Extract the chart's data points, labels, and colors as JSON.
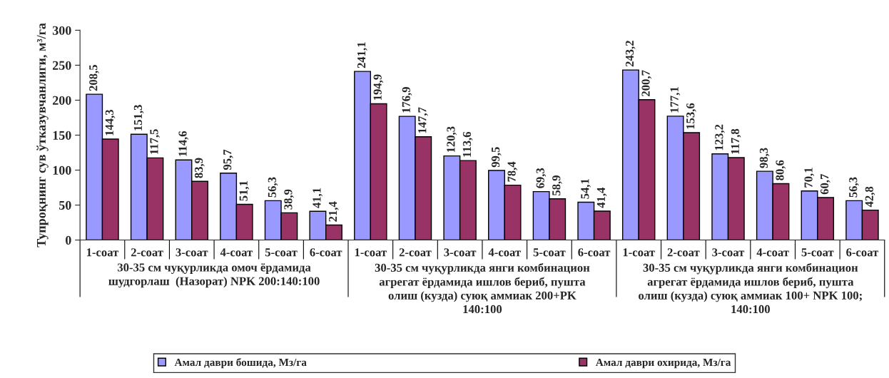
{
  "chart_data": {
    "type": "bar",
    "ylabel": "Тупроқнинг сув ўтказувчанлиги, м³/га",
    "categories": [
      "1-соат",
      "2-соат",
      "3-соат",
      "4-соат",
      "5-соат",
      "6-соат",
      "1-соат",
      "2-соат",
      "3-соат",
      "4-соат",
      "5-соат",
      "6-соат",
      "1-соат",
      "2-соат",
      "3-соат",
      "4-соат",
      "5-соат",
      "6-соат"
    ],
    "series": [
      {
        "name": "Амал даври бошида, Мз/га",
        "color": "#9999ff",
        "values": [
          208.5,
          151.3,
          114.6,
          95.7,
          56.3,
          41.1,
          241.1,
          176.9,
          120.3,
          99.5,
          69.3,
          54.1,
          243.2,
          177.1,
          123.2,
          98.3,
          70.1,
          56.3
        ],
        "value_labels": [
          "208,5",
          "151,3",
          "114,6",
          "95,7",
          "56,3",
          "41,1",
          "241,1",
          "176,9",
          "120,3",
          "99,5",
          "69,3",
          "54,1",
          "243,2",
          "177,1",
          "123,2",
          "98,3",
          "70,1",
          "56,3"
        ]
      },
      {
        "name": "Амал даври охирида, Мз/га",
        "color": "#993366",
        "values": [
          144.3,
          117.5,
          83.9,
          51.1,
          38.9,
          21.4,
          194.9,
          147.7,
          113.6,
          78.4,
          58.9,
          41.4,
          200.7,
          153.6,
          117.8,
          80.6,
          60.7,
          42.8
        ],
        "value_labels": [
          "144,3",
          "117,5",
          "83,9",
          "51,1",
          "38,9",
          "21,4",
          "194,9",
          "147,7",
          "113,6",
          "78,4",
          "58,9",
          "41,4",
          "200,7",
          "153,6",
          "117,8",
          "80,6",
          "60,7",
          "42,8"
        ]
      }
    ],
    "annotations": [
      "30-35 см чуқурликда омоч ёрдамида\nшудгорлаш  (Назорат) NPK 200:140:100",
      "30-35 см чуқурликда янги комбинацион\nагрегат ёрдамида ишлов бериб, пушта\nолиш (кузда) суюқ аммиак 200+PK\n140:100",
      "30-35 см чуқурликда янги комбинацион\nагрегат ёрдамида ишлов бериб, пушта\nолиш (кузда) суюқ аммиак 100+ NPK 100;\n140:100"
    ],
    "ylim": [
      0,
      300
    ],
    "yticks": [
      0,
      50,
      100,
      150,
      200,
      250,
      300
    ],
    "grid": false,
    "legend": "bottom"
  }
}
